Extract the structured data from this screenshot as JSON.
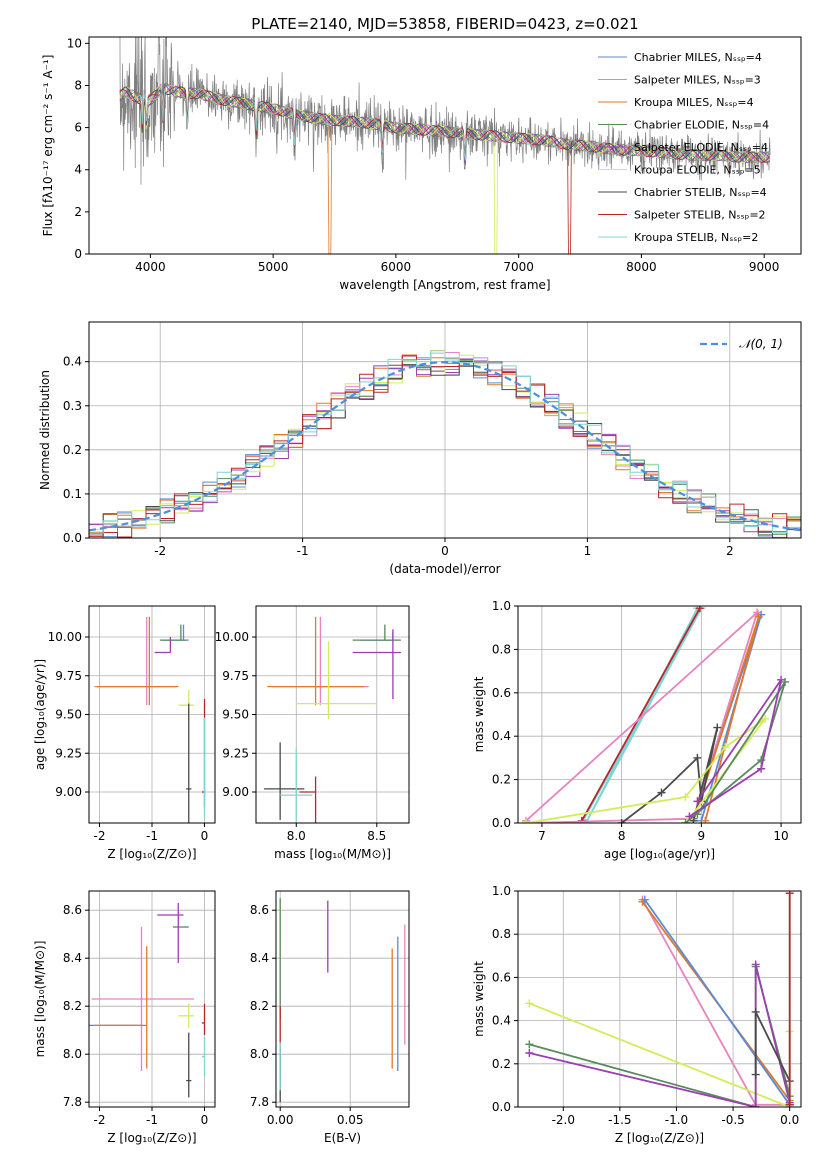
{
  "figure_title": "PLATE=2140, MJD=53858, FIBERID=0423, z=0.021",
  "chart_data": [
    {
      "type": "line",
      "xlabel": "wavelength [Angstrom, rest frame]",
      "ylabel": "Flux [fλ10⁻¹⁷ erg cm⁻² s⁻¹ A⁻¹]",
      "xlim": [
        3500,
        9300
      ],
      "ylim": [
        0,
        10.3
      ],
      "xticks": [
        4000,
        5000,
        6000,
        7000,
        8000,
        9000
      ],
      "yticks": [
        0,
        2,
        4,
        6,
        8,
        10
      ],
      "legend_placement": "top-right",
      "data_color": "#7f7f7f",
      "series": [
        {
          "name": "Chabrier MILES, N_SSP=4",
          "color": "#5b8bd6"
        },
        {
          "name": "Salpeter MILES, N_SSP=3",
          "color": "#e683c0"
        },
        {
          "name": "Kroupa MILES, N_SSP=4",
          "color": "#e0792a"
        },
        {
          "name": "Chabrier ELODIE, N_SSP=4",
          "color": "#5a8a5c"
        },
        {
          "name": "Salpeter ELODIE, N_SSP=4",
          "color": "#9a3fb0"
        },
        {
          "name": "Kroupa ELODIE, N_SSP=5",
          "color": "#d2ed5a"
        },
        {
          "name": "Chabrier STELIB, N_SSP=4",
          "color": "#4a4a4a"
        },
        {
          "name": "Salpeter STELIB, N_SSP=2",
          "color": "#b8262a"
        },
        {
          "name": "Kroupa STELIB, N_SSP=2",
          "color": "#7fd4d4"
        }
      ],
      "continuum": {
        "x": [
          3750,
          3800,
          3900,
          4000,
          4100,
          4200,
          4400,
          4600,
          4800,
          5000,
          5200,
          5400,
          5600,
          5800,
          6000,
          6200,
          6400,
          6600,
          6800,
          7000,
          7200,
          7400,
          7600,
          7800,
          8000,
          8200,
          8400,
          8600,
          8800,
          9000
        ],
        "y": [
          7.5,
          7.7,
          7.4,
          7.3,
          7.9,
          7.7,
          7.6,
          7.3,
          7.1,
          6.9,
          6.6,
          6.4,
          6.3,
          6.2,
          6.0,
          5.9,
          5.8,
          5.7,
          5.6,
          5.5,
          5.4,
          5.2,
          5.1,
          4.95,
          4.9,
          4.8,
          4.7,
          4.7,
          4.6,
          4.6
        ]
      }
    },
    {
      "type": "line",
      "xlabel": "(data-model)/error",
      "ylabel": "Normed distribution",
      "xlim": [
        -2.5,
        2.5
      ],
      "ylim": [
        0,
        0.49
      ],
      "xticks": [
        -2,
        -1,
        0,
        1,
        2
      ],
      "yticks": [
        0.0,
        0.1,
        0.2,
        0.3,
        0.4
      ],
      "legend": "𝒩(0, 1)",
      "legend_placement": "top-right",
      "gaussian": {
        "mu": 0,
        "sigma": 1,
        "color": "#4a90e2"
      },
      "histogram_bin_width": 0.1
    },
    {
      "type": "scatter",
      "xlabel": "Z [log₁₀(Z/Z⊙)]",
      "ylabel": "age  [log₁₀(age/yr)]",
      "xlim": [
        -2.2,
        0.2
      ],
      "ylim": [
        8.8,
        10.2
      ],
      "xticks": [
        -2,
        -1,
        0
      ],
      "yticks": [
        9.0,
        9.25,
        9.5,
        9.75,
        10.0
      ],
      "points": [
        {
          "series": 1,
          "x": -1.1,
          "y": 9.68,
          "xerr": [
            1.0,
            0.55
          ],
          "yerr": [
            0.12,
            0.45
          ]
        },
        {
          "series": 2,
          "x": -1.05,
          "y": 9.68,
          "xerr": [
            1.0,
            0.55
          ],
          "yerr": [
            0.12,
            0.45
          ]
        },
        {
          "series": 0,
          "x": -0.4,
          "y": 9.98,
          "xerr": [
            0.4,
            0.1
          ],
          "yerr": [
            0.0,
            0.1
          ]
        },
        {
          "series": 3,
          "x": -0.45,
          "y": 9.98,
          "xerr": [
            0.4,
            0.1
          ],
          "yerr": [
            0.0,
            0.1
          ]
        },
        {
          "series": 4,
          "x": -0.65,
          "y": 9.9,
          "xerr": [
            0.3,
            0.0
          ],
          "yerr": [
            0.0,
            0.1
          ]
        },
        {
          "series": 5,
          "x": -0.3,
          "y": 9.56,
          "xerr": [
            0.2,
            0.1
          ],
          "yerr": [
            0.1,
            0.1
          ]
        },
        {
          "series": 6,
          "x": -0.3,
          "y": 9.02,
          "xerr": [
            0.05,
            0.05
          ],
          "yerr": [
            0.3,
            0.55
          ]
        },
        {
          "series": 7,
          "x": 0.0,
          "y": 9.0,
          "xerr": [
            0.05,
            0.0
          ],
          "yerr": [
            0.1,
            0.6
          ]
        },
        {
          "series": 8,
          "x": 0.0,
          "y": 8.98,
          "xerr": [
            0.0,
            0.0
          ],
          "yerr": [
            0.15,
            0.5
          ]
        }
      ]
    },
    {
      "type": "scatter",
      "xlabel": "mass [log₁₀(M/M⊙)]",
      "ylabel": "",
      "xlim": [
        7.75,
        8.7
      ],
      "ylim": [
        8.8,
        10.2
      ],
      "xticks": [
        8.0,
        8.5
      ],
      "yticks": [
        9.0,
        9.25,
        9.5,
        9.75,
        10.0
      ],
      "points": [
        {
          "series": 1,
          "x": 8.15,
          "y": 9.68,
          "xerr": [
            0.3,
            0.3
          ],
          "yerr": [
            0.12,
            0.45
          ]
        },
        {
          "series": 2,
          "x": 8.12,
          "y": 9.68,
          "xerr": [
            0.3,
            0.3
          ],
          "yerr": [
            0.12,
            0.45
          ]
        },
        {
          "series": 0,
          "x": 8.6,
          "y": 9.98,
          "xerr": [
            0.2,
            0.0
          ],
          "yerr": [
            0.0,
            0.05
          ]
        },
        {
          "series": 3,
          "x": 8.55,
          "y": 9.98,
          "xerr": [
            0.2,
            0.1
          ],
          "yerr": [
            0.0,
            0.1
          ]
        },
        {
          "series": 4,
          "x": 8.6,
          "y": 9.9,
          "xerr": [
            0.25,
            0.05
          ],
          "yerr": [
            0.3,
            0.15
          ]
        },
        {
          "series": 5,
          "x": 8.2,
          "y": 9.57,
          "xerr": [
            0.2,
            0.3
          ],
          "yerr": [
            0.1,
            0.4
          ]
        },
        {
          "series": 6,
          "x": 7.9,
          "y": 9.02,
          "xerr": [
            0.1,
            0.15
          ],
          "yerr": [
            0.2,
            0.3
          ]
        },
        {
          "series": 7,
          "x": 8.12,
          "y": 9.0,
          "xerr": [
            0.1,
            0.0
          ],
          "yerr": [
            0.2,
            0.1
          ]
        },
        {
          "series": 8,
          "x": 8.0,
          "y": 8.98,
          "xerr": [
            0.1,
            0.1
          ],
          "yerr": [
            0.2,
            0.3
          ]
        }
      ]
    },
    {
      "type": "line",
      "xlabel": "age  [log₁₀(age/yr)]",
      "ylabel": "mass weight",
      "xlim": [
        6.7,
        10.25
      ],
      "ylim": [
        0,
        1
      ],
      "xticks": [
        7,
        8,
        9,
        10
      ],
      "yticks": [
        0.0,
        0.2,
        0.4,
        0.6,
        0.8,
        1.0
      ],
      "series": [
        {
          "series": 8,
          "points": [
            [
              7.5,
              0.0
            ],
            [
              9.0,
              0.99
            ],
            [
              7.55,
              0.0
            ],
            [
              8.95,
              0.99
            ]
          ]
        },
        {
          "series": 7,
          "points": [
            [
              7.5,
              0.01
            ],
            [
              8.98,
              0.99
            ]
          ]
        },
        {
          "series": 1,
          "points": [
            [
              6.8,
              0.0
            ],
            [
              8.9,
              0.02
            ],
            [
              9.7,
              0.97
            ],
            [
              6.8,
              0.01
            ]
          ]
        },
        {
          "series": 0,
          "points": [
            [
              8.9,
              0.02
            ],
            [
              9.75,
              0.96
            ],
            [
              9.0,
              0.01
            ]
          ]
        },
        {
          "series": 2,
          "points": [
            [
              8.9,
              0.01
            ],
            [
              9.72,
              0.95
            ],
            [
              9.05,
              0.01
            ]
          ]
        },
        {
          "series": 6,
          "points": [
            [
              8.0,
              0.0
            ],
            [
              8.5,
              0.14
            ],
            [
              8.95,
              0.3
            ],
            [
              9.0,
              0.1
            ],
            [
              9.2,
              0.44
            ],
            [
              8.9,
              0.01
            ]
          ]
        },
        {
          "series": 5,
          "points": [
            [
              6.8,
              0.0
            ],
            [
              8.8,
              0.12
            ],
            [
              9.3,
              0.35
            ],
            [
              9.8,
              0.48
            ],
            [
              8.85,
              0.02
            ]
          ]
        },
        {
          "series": 3,
          "points": [
            [
              8.8,
              0.0
            ],
            [
              9.75,
              0.29
            ],
            [
              10.05,
              0.65
            ],
            [
              8.95,
              0.04
            ]
          ]
        },
        {
          "series": 4,
          "points": [
            [
              8.85,
              0.03
            ],
            [
              9.75,
              0.25
            ],
            [
              10.0,
              0.66
            ],
            [
              8.95,
              0.1
            ]
          ]
        }
      ]
    },
    {
      "type": "scatter",
      "xlabel": "Z [log₁₀(Z/Z⊙)]",
      "ylabel": "mass [log₁₀(M/M⊙)]",
      "xlim": [
        -2.2,
        0.2
      ],
      "ylim": [
        7.78,
        8.68
      ],
      "xticks": [
        -2,
        -1,
        0
      ],
      "yticks": [
        7.8,
        8.0,
        8.2,
        8.4,
        8.6
      ],
      "points": [
        {
          "series": 1,
          "x": -1.2,
          "y": 8.23,
          "xerr": [
            0.95,
            1.0
          ],
          "yerr": [
            0.3,
            0.3
          ]
        },
        {
          "series": 0,
          "x": -1.2,
          "y": 8.12,
          "xerr": [
            1.0,
            0.0
          ],
          "yerr": [
            0.0,
            0.0
          ]
        },
        {
          "series": 2,
          "x": -1.1,
          "y": 8.12,
          "xerr": [
            1.0,
            0.0
          ],
          "yerr": [
            0.18,
            0.33
          ]
        },
        {
          "series": 3,
          "x": -0.6,
          "y": 8.53,
          "xerr": [
            0.0,
            0.3
          ],
          "yerr": [
            0.0,
            0.0
          ]
        },
        {
          "series": 4,
          "x": -0.5,
          "y": 8.58,
          "xerr": [
            0.4,
            0.1
          ],
          "yerr": [
            0.2,
            0.05
          ]
        },
        {
          "series": 5,
          "x": -0.3,
          "y": 8.16,
          "xerr": [
            0.2,
            0.1
          ],
          "yerr": [
            0.05,
            0.05
          ]
        },
        {
          "series": 6,
          "x": -0.3,
          "y": 7.89,
          "xerr": [
            0.05,
            0.05
          ],
          "yerr": [
            0.07,
            0.2
          ]
        },
        {
          "series": 7,
          "x": 0.0,
          "y": 8.13,
          "xerr": [
            0.05,
            0.0
          ],
          "yerr": [
            0.05,
            0.08
          ]
        },
        {
          "series": 8,
          "x": 0.0,
          "y": 7.99,
          "xerr": [
            0.05,
            0.0
          ],
          "yerr": [
            0.08,
            0.08
          ]
        }
      ]
    },
    {
      "type": "scatter",
      "xlabel": "E(B-V)",
      "ylabel": "",
      "xlim": [
        -0.003,
        0.092
      ],
      "ylim": [
        7.78,
        8.68
      ],
      "xticks": [
        0.0,
        0.05
      ],
      "yticks": [
        7.8,
        8.0,
        8.2,
        8.4,
        8.6
      ],
      "points": [
        {
          "series": 5,
          "x": 0.0,
          "y": 8.55,
          "yerr": [
            0.15,
            0.1
          ]
        },
        {
          "series": 4,
          "x": 0.034,
          "y": 8.49,
          "yerr": [
            0.15,
            0.15
          ]
        },
        {
          "series": 3,
          "x": 0.0,
          "y": 8.35,
          "yerr": [
            0.2,
            0.3
          ]
        },
        {
          "series": 1,
          "x": 0.089,
          "y": 8.29,
          "yerr": [
            0.25,
            0.25
          ]
        },
        {
          "series": 2,
          "x": 0.08,
          "y": 8.19,
          "yerr": [
            0.25,
            0.25
          ]
        },
        {
          "series": 0,
          "x": 0.084,
          "y": 8.21,
          "yerr": [
            0.28,
            0.28
          ]
        },
        {
          "series": 7,
          "x": 0.0,
          "y": 8.0,
          "yerr": [
            0.1,
            0.2
          ]
        },
        {
          "series": 6,
          "x": 0.0,
          "y": 7.9,
          "yerr": [
            0.1,
            0.1
          ]
        },
        {
          "series": 8,
          "x": 0.0,
          "y": 7.95,
          "yerr": [
            0.1,
            0.1
          ]
        }
      ]
    },
    {
      "type": "line",
      "xlabel": "Z [log₁₀(Z/Z⊙)]",
      "ylabel": "mass weight",
      "xlim": [
        -2.4,
        0.1
      ],
      "ylim": [
        0,
        1
      ],
      "xticks": [
        -2.0,
        -1.5,
        -1.0,
        -0.5,
        0.0
      ],
      "yticks": [
        0.0,
        0.2,
        0.4,
        0.6,
        0.8,
        1.0
      ],
      "series": [
        {
          "series": 1,
          "points": [
            [
              -1.3,
              0.96
            ],
            [
              -0.3,
              0.01
            ],
            [
              0.0,
              0.01
            ]
          ]
        },
        {
          "series": 2,
          "points": [
            [
              -1.3,
              0.95
            ],
            [
              0.0,
              0.03
            ]
          ]
        },
        {
          "series": 0,
          "points": [
            [
              -1.28,
              0.96
            ],
            [
              0.0,
              0.01
            ]
          ]
        },
        {
          "series": 5,
          "points": [
            [
              -2.3,
              0.48
            ],
            [
              0.0,
              0.0
            ],
            [
              0.0,
              0.35
            ]
          ]
        },
        {
          "series": 3,
          "points": [
            [
              -2.3,
              0.29
            ],
            [
              -0.3,
              0.0
            ],
            [
              -0.3,
              0.65
            ],
            [
              0.0,
              0.05
            ]
          ]
        },
        {
          "series": 4,
          "points": [
            [
              -2.3,
              0.25
            ],
            [
              -0.3,
              0.0
            ],
            [
              -0.3,
              0.66
            ],
            [
              0.0,
              0.02
            ]
          ]
        },
        {
          "series": 6,
          "points": [
            [
              -0.3,
              0.15
            ],
            [
              -0.3,
              0.44
            ],
            [
              0.0,
              0.12
            ]
          ]
        },
        {
          "series": 8,
          "points": [
            [
              0.0,
              0.0
            ],
            [
              0.0,
              0.99
            ]
          ]
        },
        {
          "series": 7,
          "points": [
            [
              0.0,
              0.01
            ],
            [
              0.0,
              0.99
            ]
          ]
        }
      ]
    }
  ]
}
